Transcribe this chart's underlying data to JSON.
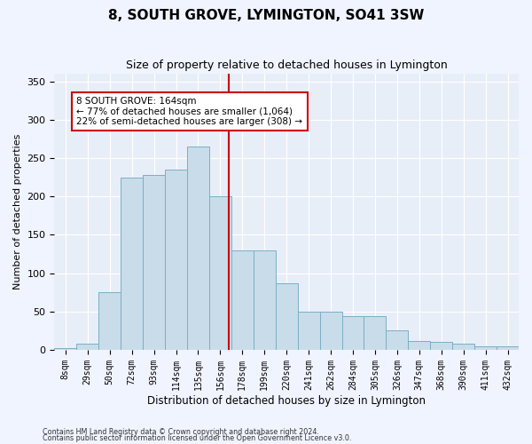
{
  "title": "8, SOUTH GROVE, LYMINGTON, SO41 3SW",
  "subtitle": "Size of property relative to detached houses in Lymington",
  "xlabel": "Distribution of detached houses by size in Lymington",
  "ylabel": "Number of detached properties",
  "categories": [
    "8sqm",
    "29sqm",
    "50sqm",
    "72sqm",
    "93sqm",
    "114sqm",
    "135sqm",
    "156sqm",
    "178sqm",
    "199sqm",
    "220sqm",
    "241sqm",
    "262sqm",
    "284sqm",
    "305sqm",
    "326sqm",
    "347sqm",
    "368sqm",
    "390sqm",
    "411sqm",
    "432sqm"
  ],
  "bar_values": [
    2,
    8,
    75,
    225,
    228,
    235,
    265,
    200,
    130,
    130,
    87,
    50,
    50,
    44,
    44,
    25,
    12,
    10,
    8,
    5,
    5
  ],
  "bar_color": "#c9dcea",
  "bar_edge_color": "#7aafc5",
  "vline_x": 7.38,
  "vline_color": "#cc0000",
  "annotation_text": "8 SOUTH GROVE: 164sqm\n← 77% of detached houses are smaller (1,064)\n22% of semi-detached houses are larger (308) →",
  "annotation_box_facecolor": "#ffffff",
  "annotation_box_edgecolor": "#cc0000",
  "ylim": [
    0,
    360
  ],
  "yticks": [
    0,
    50,
    100,
    150,
    200,
    250,
    300,
    350
  ],
  "plot_bg_color": "#e8eef8",
  "fig_bg_color": "#f0f4ff",
  "footer1": "Contains HM Land Registry data © Crown copyright and database right 2024.",
  "footer2": "Contains public sector information licensed under the Open Government Licence v3.0.",
  "title_fontsize": 11,
  "subtitle_fontsize": 9,
  "tick_fontsize": 7,
  "ylabel_fontsize": 8,
  "xlabel_fontsize": 8.5
}
